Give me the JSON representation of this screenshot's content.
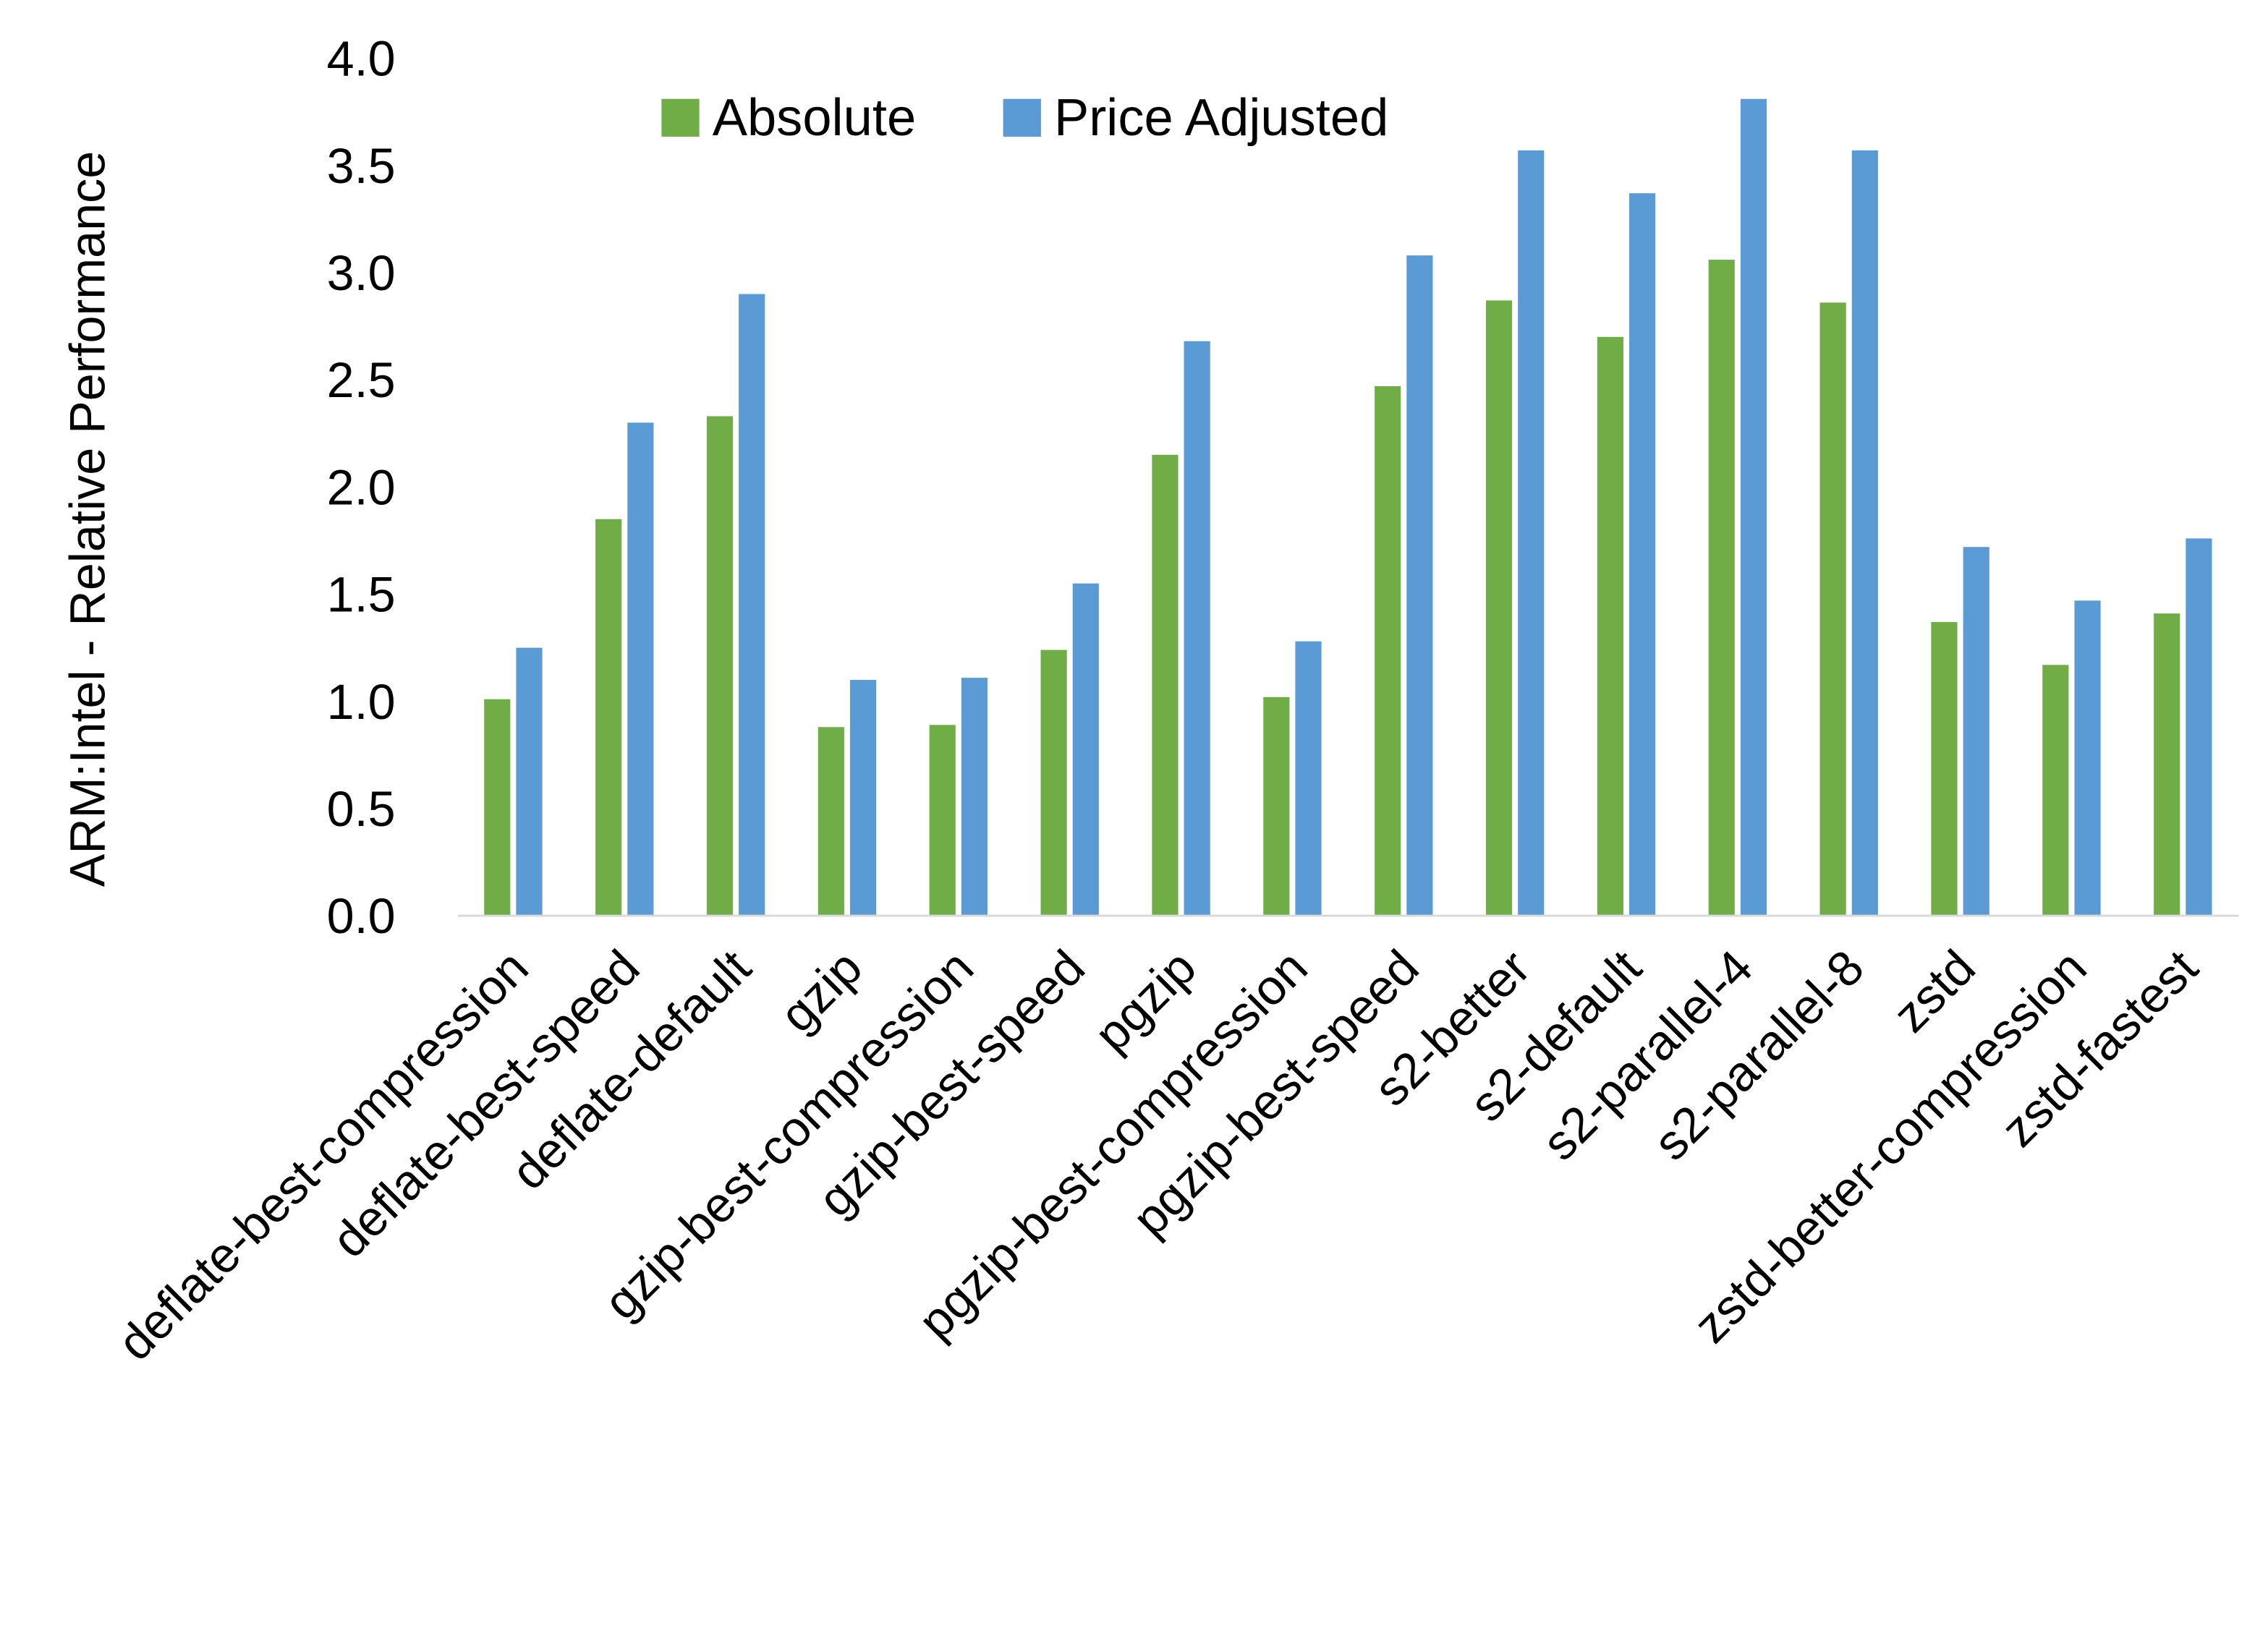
{
  "chart_data": {
    "type": "bar",
    "title": "",
    "xlabel": "",
    "ylabel": "ARM:Intel - Relative Performance",
    "ylim": [
      0,
      4.0
    ],
    "yticks": [
      "0.0",
      "0.5",
      "1.0",
      "1.5",
      "2.0",
      "2.5",
      "3.0",
      "3.5",
      "4.0"
    ],
    "grid": false,
    "legend_position": "top",
    "categories": [
      "deflate-best-compression",
      "deflate-best-speed",
      "deflate-default",
      "gzip",
      "gzip-best-compression",
      "gzip-best-speed",
      "pgzip",
      "pgzip-best-compression",
      "pgzip-best-speed",
      "s2-better",
      "s2-default",
      "s2-parallel-4",
      "s2-parallel-8",
      "zstd",
      "zstd-better-compression",
      "zstd-fastest"
    ],
    "series": [
      {
        "name": "Absolute",
        "color": "#70AD47",
        "values": [
          1.01,
          1.85,
          2.33,
          0.88,
          0.89,
          1.24,
          2.15,
          1.02,
          2.47,
          2.87,
          2.7,
          3.06,
          2.86,
          1.37,
          1.17,
          1.41
        ]
      },
      {
        "name": "Price Adjusted",
        "color": "#5B9BD5",
        "values": [
          1.25,
          2.3,
          2.9,
          1.1,
          1.11,
          1.55,
          2.68,
          1.28,
          3.08,
          3.57,
          3.37,
          3.81,
          3.57,
          1.72,
          1.47,
          1.76
        ]
      }
    ]
  }
}
